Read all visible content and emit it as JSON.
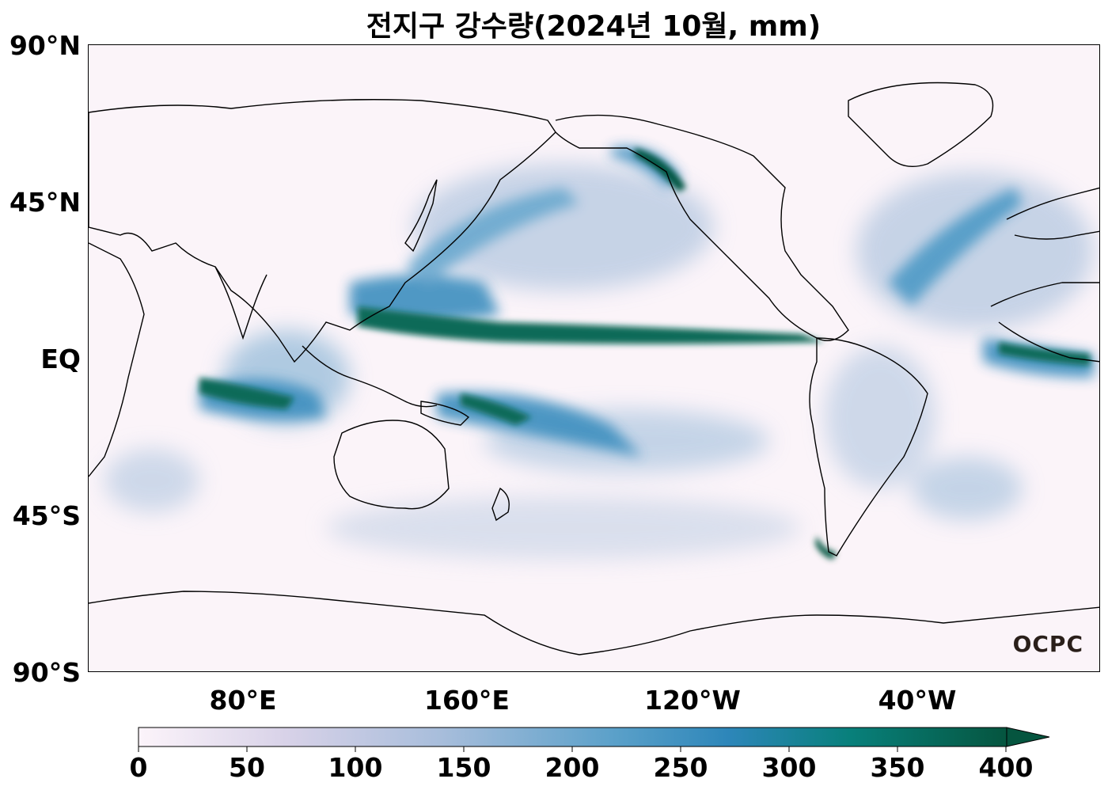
{
  "title": "전지구 강수량(2024년 10월, mm)",
  "lat_labels": [
    "90°N",
    "45°N",
    "EQ",
    "45°S",
    "90°S"
  ],
  "lon_labels": [
    "80°E",
    "160°E",
    "120°W",
    "40°W"
  ],
  "colorbar": {
    "ticks": [
      "0",
      "50",
      "100",
      "150",
      "200",
      "250",
      "300",
      "350",
      "400"
    ],
    "colors": [
      "#fcf4fa",
      "#d8d2e8",
      "#a7bddb",
      "#5aa0c9",
      "#2d86b9",
      "#08807b",
      "#05553f"
    ],
    "extend": "max"
  },
  "logo": "OCPC"
}
